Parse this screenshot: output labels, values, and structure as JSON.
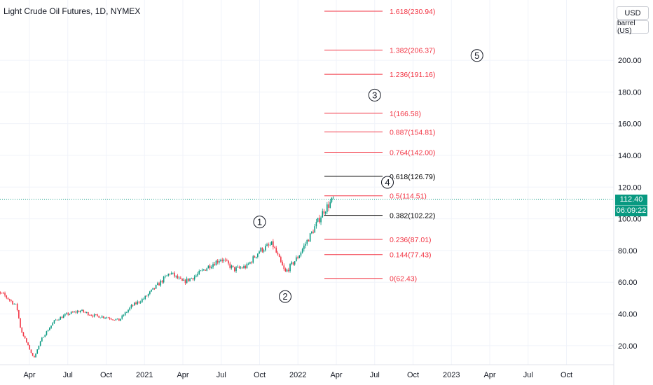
{
  "title": "Light Crude Oil Futures, 1D, NYMEX",
  "currency_button": "USD",
  "unit_button": "barrel (US)",
  "last_price": "112.40",
  "countdown": "06:09:22",
  "colors": {
    "fib_line": "#f23645",
    "fib_key_line": "#000000",
    "up_candle": "#089981",
    "down_candle": "#f23645",
    "last_price_line": "#089981"
  },
  "chart_data": {
    "type": "candlestick",
    "title": "Light Crude Oil Futures, 1D, NYMEX",
    "ylim": [
      8,
      238
    ],
    "y_ticks": [
      "20.00",
      "40.00",
      "60.00",
      "80.00",
      "100.00",
      "120.00",
      "140.00",
      "160.00",
      "180.00",
      "200.00"
    ],
    "x_tick_labels": [
      "Apr",
      "Jul",
      "Oct",
      "2021",
      "Apr",
      "Jul",
      "Oct",
      "2022",
      "Apr",
      "Jul",
      "Oct",
      "2023",
      "Apr",
      "Jul",
      "Oct"
    ],
    "x_tick_dates": [
      "2020-04",
      "2020-07",
      "2020-10",
      "2021-01",
      "2021-04",
      "2021-07",
      "2021-10",
      "2022-01",
      "2022-04",
      "2022-07",
      "2022-10",
      "2023-01",
      "2023-04",
      "2023-07",
      "2023-10"
    ],
    "price_path": [
      [
        "2020-01",
        55
      ],
      [
        "2020-02",
        52
      ],
      [
        "2020-03",
        45
      ],
      [
        "2020-03",
        30
      ],
      [
        "2020-04",
        18
      ],
      [
        "2020-04",
        12
      ],
      [
        "2020-05",
        25
      ],
      [
        "2020-06",
        36
      ],
      [
        "2020-07",
        40
      ],
      [
        "2020-08",
        42
      ],
      [
        "2020-09",
        39
      ],
      [
        "2020-10",
        38
      ],
      [
        "2020-11",
        36
      ],
      [
        "2020-12",
        45
      ],
      [
        "2021-01",
        50
      ],
      [
        "2021-02",
        58
      ],
      [
        "2021-03",
        66
      ],
      [
        "2021-04",
        60
      ],
      [
        "2021-05",
        64
      ],
      [
        "2021-06",
        70
      ],
      [
        "2021-07",
        75
      ],
      [
        "2021-08",
        68
      ],
      [
        "2021-09",
        70
      ],
      [
        "2021-10",
        80
      ],
      [
        "2021-11",
        84
      ],
      [
        "2021-12",
        66
      ],
      [
        "2022-01",
        76
      ],
      [
        "2022-02",
        90
      ],
      [
        "2022-03",
        105
      ],
      [
        "2022-03",
        112.4
      ]
    ],
    "fib_levels": [
      {
        "ratio": "0",
        "price": 62.43,
        "label": "0(62.43)",
        "key": false
      },
      {
        "ratio": "0.144",
        "price": 77.43,
        "label": "0.144(77.43)",
        "key": false
      },
      {
        "ratio": "0.236",
        "price": 87.01,
        "label": "0.236(87.01)",
        "key": false
      },
      {
        "ratio": "0.382",
        "price": 102.22,
        "label": "0.382(102.22)",
        "key": true
      },
      {
        "ratio": "0.5",
        "price": 114.51,
        "label": "0.5(114.51)",
        "key": false
      },
      {
        "ratio": "0.618",
        "price": 126.79,
        "label": "0.618(126.79)",
        "key": true
      },
      {
        "ratio": "0.764",
        "price": 142.0,
        "label": "0.764(142.00)",
        "key": false
      },
      {
        "ratio": "0.887",
        "price": 154.81,
        "label": "0.887(154.81)",
        "key": false
      },
      {
        "ratio": "1",
        "price": 166.58,
        "label": "1(166.58)",
        "key": false
      },
      {
        "ratio": "1.236",
        "price": 191.16,
        "label": "1.236(191.16)",
        "key": false
      },
      {
        "ratio": "1.382",
        "price": 206.37,
        "label": "1.382(206.37)",
        "key": false
      },
      {
        "ratio": "1.618",
        "price": 230.94,
        "label": "1.618(230.94)",
        "key": false
      }
    ],
    "wave_labels": [
      {
        "label": "1",
        "date": "2021-10",
        "price": 98
      },
      {
        "label": "2",
        "date": "2021-12",
        "price": 51
      },
      {
        "label": "3",
        "date": "2022-07",
        "price": 178
      },
      {
        "label": "4",
        "date": "2022-08",
        "price": 123
      },
      {
        "label": "5",
        "date": "2023-03",
        "price": 203
      }
    ],
    "last_price": 112.4
  }
}
